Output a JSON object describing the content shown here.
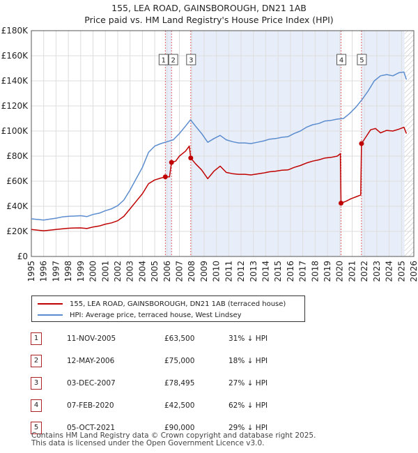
{
  "chart_data": {
    "type": "line",
    "title": "155, LEA ROAD, GAINSBOROUGH, DN21 1AB",
    "subtitle": "Price paid vs. HM Land Registry's House Price Index (HPI)",
    "xlim": [
      1995,
      2026
    ],
    "ylim": [
      0,
      180000
    ],
    "xticks": [
      "1995",
      "1996",
      "1997",
      "1998",
      "1999",
      "2000",
      "2001",
      "2002",
      "2003",
      "2004",
      "2005",
      "2006",
      "2007",
      "2008",
      "2009",
      "2010",
      "2011",
      "2012",
      "2013",
      "2014",
      "2015",
      "2016",
      "2017",
      "2018",
      "2019",
      "2020",
      "2021",
      "2022",
      "2023",
      "2024",
      "2025",
      "2026"
    ],
    "yticks": [
      {
        "value": 0,
        "label": "£0"
      },
      {
        "value": 20000,
        "label": "£20K"
      },
      {
        "value": 40000,
        "label": "£40K"
      },
      {
        "value": 60000,
        "label": "£60K"
      },
      {
        "value": 80000,
        "label": "£80K"
      },
      {
        "value": 100000,
        "label": "£100K"
      },
      {
        "value": 120000,
        "label": "£120K"
      },
      {
        "value": 140000,
        "label": "£140K"
      },
      {
        "value": 160000,
        "label": "£160K"
      },
      {
        "value": 180000,
        "label": "£180K"
      }
    ],
    "shaded_ranges": [
      [
        2005.86,
        2006.36
      ],
      [
        2007.92,
        2020.1
      ],
      [
        2021.76,
        2025.25
      ]
    ],
    "hatch_from": 2025.25,
    "series": [
      {
        "name": "HPI: Average price, terraced house, West Lindsey",
        "color": "#5b8ccf",
        "points": [
          [
            1995.0,
            30000
          ],
          [
            1995.5,
            29500
          ],
          [
            1996.0,
            29000
          ],
          [
            1996.5,
            29800
          ],
          [
            1997.0,
            30500
          ],
          [
            1997.5,
            31500
          ],
          [
            1998.0,
            32000
          ],
          [
            1998.5,
            32200
          ],
          [
            1999.0,
            32500
          ],
          [
            1999.5,
            31800
          ],
          [
            2000.0,
            33500
          ],
          [
            2000.5,
            34500
          ],
          [
            2001.0,
            36500
          ],
          [
            2001.5,
            38000
          ],
          [
            2002.0,
            40500
          ],
          [
            2002.5,
            45000
          ],
          [
            2003.0,
            53000
          ],
          [
            2003.5,
            62000
          ],
          [
            2004.0,
            71000
          ],
          [
            2004.5,
            83000
          ],
          [
            2005.0,
            88000
          ],
          [
            2005.5,
            90000
          ],
          [
            2006.0,
            91500
          ],
          [
            2006.5,
            93000
          ],
          [
            2007.0,
            98000
          ],
          [
            2007.5,
            104000
          ],
          [
            2007.9,
            109000
          ],
          [
            2008.3,
            104000
          ],
          [
            2008.8,
            98000
          ],
          [
            2009.3,
            91000
          ],
          [
            2009.8,
            94000
          ],
          [
            2010.3,
            96500
          ],
          [
            2010.8,
            93000
          ],
          [
            2011.3,
            91500
          ],
          [
            2011.8,
            90500
          ],
          [
            2012.3,
            90500
          ],
          [
            2012.8,
            90000
          ],
          [
            2013.3,
            91000
          ],
          [
            2013.8,
            92000
          ],
          [
            2014.3,
            93500
          ],
          [
            2014.8,
            94000
          ],
          [
            2015.3,
            95000
          ],
          [
            2015.8,
            95500
          ],
          [
            2016.3,
            98000
          ],
          [
            2016.8,
            100000
          ],
          [
            2017.3,
            103000
          ],
          [
            2017.8,
            105000
          ],
          [
            2018.3,
            106000
          ],
          [
            2018.8,
            108000
          ],
          [
            2019.3,
            108500
          ],
          [
            2019.8,
            109500
          ],
          [
            2020.3,
            110000
          ],
          [
            2020.8,
            114000
          ],
          [
            2021.3,
            119000
          ],
          [
            2021.8,
            125000
          ],
          [
            2022.3,
            132000
          ],
          [
            2022.8,
            140000
          ],
          [
            2023.3,
            144000
          ],
          [
            2023.8,
            145000
          ],
          [
            2024.3,
            144000
          ],
          [
            2024.8,
            146500
          ],
          [
            2025.2,
            147000
          ],
          [
            2025.4,
            141000
          ]
        ]
      },
      {
        "name": "155, LEA ROAD, GAINSBOROUGH, DN21 1AB (terraced house)",
        "color": "#c00000",
        "points": [
          [
            1995.0,
            21500
          ],
          [
            1995.5,
            21000
          ],
          [
            1996.0,
            20500
          ],
          [
            1996.5,
            21000
          ],
          [
            1997.0,
            21500
          ],
          [
            1997.5,
            22000
          ],
          [
            1998.0,
            22500
          ],
          [
            1998.5,
            22700
          ],
          [
            1999.0,
            22800
          ],
          [
            1999.5,
            22300
          ],
          [
            2000.0,
            23500
          ],
          [
            2000.5,
            24300
          ],
          [
            2001.0,
            25800
          ],
          [
            2001.5,
            26800
          ],
          [
            2002.0,
            28500
          ],
          [
            2002.5,
            32000
          ],
          [
            2003.0,
            38000
          ],
          [
            2003.5,
            44000
          ],
          [
            2004.0,
            50000
          ],
          [
            2004.5,
            58000
          ],
          [
            2005.0,
            61000
          ],
          [
            2005.5,
            62500
          ],
          [
            2005.86,
            63500
          ],
          [
            2006.2,
            63500
          ],
          [
            2006.36,
            75000
          ],
          [
            2006.7,
            76000
          ],
          [
            2007.0,
            80000
          ],
          [
            2007.5,
            84000
          ],
          [
            2007.8,
            88000
          ],
          [
            2007.92,
            78495
          ],
          [
            2008.3,
            74000
          ],
          [
            2008.8,
            69000
          ],
          [
            2009.3,
            62000
          ],
          [
            2009.8,
            68000
          ],
          [
            2010.3,
            72000
          ],
          [
            2010.8,
            67000
          ],
          [
            2011.3,
            66000
          ],
          [
            2011.8,
            65500
          ],
          [
            2012.3,
            65500
          ],
          [
            2012.8,
            65000
          ],
          [
            2013.3,
            65800
          ],
          [
            2013.8,
            66500
          ],
          [
            2014.3,
            67500
          ],
          [
            2014.8,
            68000
          ],
          [
            2015.3,
            68800
          ],
          [
            2015.8,
            69000
          ],
          [
            2016.3,
            71000
          ],
          [
            2016.8,
            72500
          ],
          [
            2017.3,
            74500
          ],
          [
            2017.8,
            76000
          ],
          [
            2018.3,
            77000
          ],
          [
            2018.8,
            78500
          ],
          [
            2019.3,
            79000
          ],
          [
            2019.8,
            80000
          ],
          [
            2020.05,
            82000
          ],
          [
            2020.1,
            42500
          ],
          [
            2020.5,
            44000
          ],
          [
            2020.9,
            46000
          ],
          [
            2021.3,
            47500
          ],
          [
            2021.7,
            49000
          ],
          [
            2021.76,
            90000
          ],
          [
            2022.1,
            95000
          ],
          [
            2022.5,
            101000
          ],
          [
            2022.9,
            102000
          ],
          [
            2023.3,
            98500
          ],
          [
            2023.8,
            100500
          ],
          [
            2024.3,
            100000
          ],
          [
            2024.8,
            101500
          ],
          [
            2025.2,
            103000
          ],
          [
            2025.4,
            98000
          ]
        ]
      }
    ],
    "sales": [
      {
        "num": "1",
        "x": 2005.86,
        "price": 63500
      },
      {
        "num": "2",
        "x": 2006.36,
        "price": 75000
      },
      {
        "num": "3",
        "x": 2007.92,
        "price": 78495
      },
      {
        "num": "4",
        "x": 2020.1,
        "price": 42500
      },
      {
        "num": "5",
        "x": 2021.76,
        "price": 90000
      }
    ]
  },
  "legend": {
    "property": "155, LEA ROAD, GAINSBOROUGH, DN21 1AB (terraced house)",
    "hpi": "HPI: Average price, terraced house, West Lindsey"
  },
  "table": [
    {
      "num": "1",
      "date": "11-NOV-2005",
      "price": "£63,500",
      "diff": "31% ↓ HPI"
    },
    {
      "num": "2",
      "date": "12-MAY-2006",
      "price": "£75,000",
      "diff": "18% ↓ HPI"
    },
    {
      "num": "3",
      "date": "03-DEC-2007",
      "price": "£78,495",
      "diff": "27% ↓ HPI"
    },
    {
      "num": "4",
      "date": "07-FEB-2020",
      "price": "£42,500",
      "diff": "62% ↓ HPI"
    },
    {
      "num": "5",
      "date": "05-OCT-2021",
      "price": "£90,000",
      "diff": "29% ↓ HPI"
    }
  ],
  "footer": {
    "line1": "Contains HM Land Registry data © Crown copyright and database right 2025.",
    "line2": "This data is licensed under the Open Government Licence v3.0."
  },
  "colors": {
    "property": "#c00000",
    "hpi": "#5b8ccf",
    "shade": "#e8eef9",
    "vline": "#e06060"
  }
}
